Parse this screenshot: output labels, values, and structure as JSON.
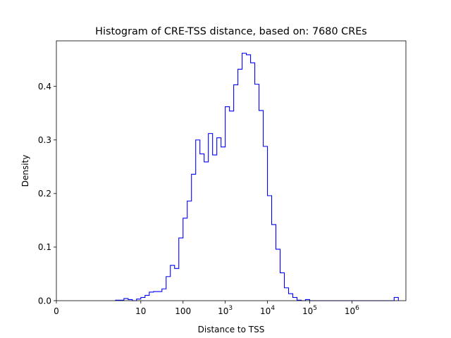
{
  "chart_data": {
    "type": "histogram",
    "title": "Histogram of CRE-TSS distance, based on: 7680 CREs",
    "xlabel": "Distance to TSS",
    "ylabel": "Density",
    "x_scale": "symlog",
    "xlim": [
      0,
      19000000
    ],
    "ylim": [
      0,
      0.485
    ],
    "x_ticks": [
      {
        "value": 0,
        "label": "0"
      },
      {
        "value": 10,
        "label": "10"
      },
      {
        "value": 100,
        "label": "100"
      },
      {
        "value": 1000,
        "label": "10",
        "sup": "3"
      },
      {
        "value": 10000,
        "label": "10",
        "sup": "4"
      },
      {
        "value": 100000,
        "label": "10",
        "sup": "5"
      },
      {
        "value": 1000000,
        "label": "10",
        "sup": "6"
      }
    ],
    "y_ticks": [
      0.0,
      0.1,
      0.2,
      0.3,
      0.4
    ],
    "y_tick_labels": [
      "0.0",
      "0.1",
      "0.2",
      "0.3",
      "0.4"
    ],
    "grid": false,
    "series": [
      {
        "color": "#0000ff",
        "bin_edges_exp": [
          0.4,
          0.5,
          0.6,
          0.7,
          0.8,
          0.9,
          1.0,
          1.1,
          1.2,
          1.3,
          1.4,
          1.5,
          1.6,
          1.7,
          1.8,
          1.9,
          2.0,
          2.1,
          2.2,
          2.3,
          2.4,
          2.5,
          2.6,
          2.7,
          2.8,
          2.9,
          3.0,
          3.1,
          3.2,
          3.3,
          3.4,
          3.5,
          3.6,
          3.7,
          3.8,
          3.9,
          4.0,
          4.1,
          4.2,
          4.3,
          4.4,
          4.5,
          4.6,
          4.7,
          4.8,
          4.9,
          5.0,
          5.1,
          5.2,
          5.3,
          5.4,
          5.5,
          5.6,
          5.7,
          5.8,
          5.9,
          6.0,
          6.1,
          6.2,
          6.3,
          6.4,
          6.5,
          6.6,
          6.7,
          6.8,
          6.9,
          7.0,
          7.1
        ],
        "density": [
          0.001,
          0.001,
          0.004,
          0.002,
          0.0,
          0.003,
          0.006,
          0.01,
          0.016,
          0.017,
          0.017,
          0.022,
          0.045,
          0.066,
          0.06,
          0.117,
          0.154,
          0.186,
          0.236,
          0.3,
          0.274,
          0.259,
          0.312,
          0.272,
          0.304,
          0.287,
          0.362,
          0.354,
          0.403,
          0.432,
          0.462,
          0.459,
          0.444,
          0.404,
          0.355,
          0.288,
          0.196,
          0.142,
          0.096,
          0.052,
          0.024,
          0.013,
          0.006,
          0.001,
          0.0,
          0.002,
          0.0,
          0.0,
          0.0,
          0.0,
          0.0,
          0.0,
          0.0,
          0.0,
          0.0,
          0.0,
          0.0,
          0.0,
          0.0,
          0.0,
          0.0,
          0.0,
          0.0,
          0.0,
          0.0,
          0.0,
          0.006
        ]
      }
    ]
  }
}
